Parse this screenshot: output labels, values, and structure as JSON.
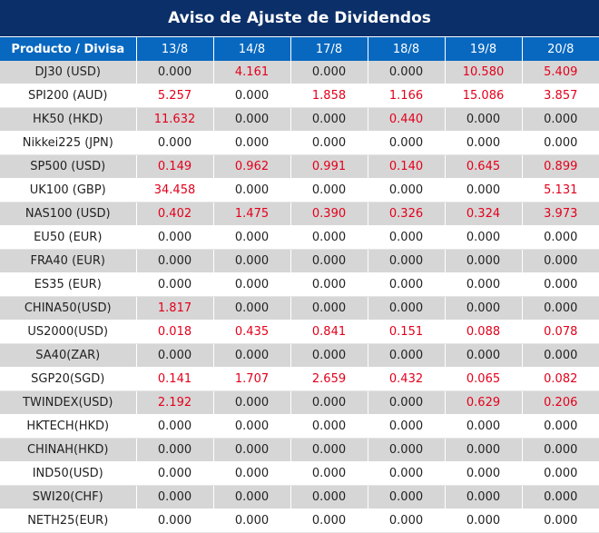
{
  "title": "Aviso de Ajuste de Dividendos",
  "colors": {
    "header_bg": "#0b2f68",
    "column_header_bg": "#0868c0",
    "positive_value": "#e3001b",
    "row_shade": "#d6d6d6"
  },
  "columns": [
    "Producto / Divisa",
    "13/8",
    "14/8",
    "17/8",
    "18/8",
    "19/8",
    "20/8"
  ],
  "rows": [
    {
      "product": "DJ30 (USD)",
      "values": [
        "0.000",
        "4.161",
        "0.000",
        "0.000",
        "10.580",
        "5.409"
      ]
    },
    {
      "product": "SPI200 (AUD)",
      "values": [
        "5.257",
        "0.000",
        "1.858",
        "1.166",
        "15.086",
        "3.857"
      ]
    },
    {
      "product": "HK50 (HKD)",
      "values": [
        "11.632",
        "0.000",
        "0.000",
        "0.440",
        "0.000",
        "0.000"
      ]
    },
    {
      "product": "Nikkei225 (JPN)",
      "values": [
        "0.000",
        "0.000",
        "0.000",
        "0.000",
        "0.000",
        "0.000"
      ]
    },
    {
      "product": "SP500 (USD)",
      "values": [
        "0.149",
        "0.962",
        "0.991",
        "0.140",
        "0.645",
        "0.899"
      ]
    },
    {
      "product": "UK100 (GBP)",
      "values": [
        "34.458",
        "0.000",
        "0.000",
        "0.000",
        "0.000",
        "5.131"
      ]
    },
    {
      "product": "NAS100 (USD)",
      "values": [
        "0.402",
        "1.475",
        "0.390",
        "0.326",
        "0.324",
        "3.973"
      ]
    },
    {
      "product": "EU50 (EUR)",
      "values": [
        "0.000",
        "0.000",
        "0.000",
        "0.000",
        "0.000",
        "0.000"
      ]
    },
    {
      "product": "FRA40 (EUR)",
      "values": [
        "0.000",
        "0.000",
        "0.000",
        "0.000",
        "0.000",
        "0.000"
      ]
    },
    {
      "product": "ES35 (EUR)",
      "values": [
        "0.000",
        "0.000",
        "0.000",
        "0.000",
        "0.000",
        "0.000"
      ]
    },
    {
      "product": "CHINA50(USD)",
      "values": [
        "1.817",
        "0.000",
        "0.000",
        "0.000",
        "0.000",
        "0.000"
      ]
    },
    {
      "product": "US2000(USD)",
      "values": [
        "0.018",
        "0.435",
        "0.841",
        "0.151",
        "0.088",
        "0.078"
      ]
    },
    {
      "product": "SA40(ZAR)",
      "values": [
        "0.000",
        "0.000",
        "0.000",
        "0.000",
        "0.000",
        "0.000"
      ]
    },
    {
      "product": "SGP20(SGD)",
      "values": [
        "0.141",
        "1.707",
        "2.659",
        "0.432",
        "0.065",
        "0.082"
      ]
    },
    {
      "product": "TWINDEX(USD)",
      "values": [
        "2.192",
        "0.000",
        "0.000",
        "0.000",
        "0.629",
        "0.206"
      ]
    },
    {
      "product": "HKTECH(HKD)",
      "values": [
        "0.000",
        "0.000",
        "0.000",
        "0.000",
        "0.000",
        "0.000"
      ]
    },
    {
      "product": "CHINAH(HKD)",
      "values": [
        "0.000",
        "0.000",
        "0.000",
        "0.000",
        "0.000",
        "0.000"
      ]
    },
    {
      "product": "IND50(USD)",
      "values": [
        "0.000",
        "0.000",
        "0.000",
        "0.000",
        "0.000",
        "0.000"
      ]
    },
    {
      "product": "SWI20(CHF)",
      "values": [
        "0.000",
        "0.000",
        "0.000",
        "0.000",
        "0.000",
        "0.000"
      ]
    },
    {
      "product": "NETH25(EUR)",
      "values": [
        "0.000",
        "0.000",
        "0.000",
        "0.000",
        "0.000",
        "0.000"
      ]
    }
  ]
}
